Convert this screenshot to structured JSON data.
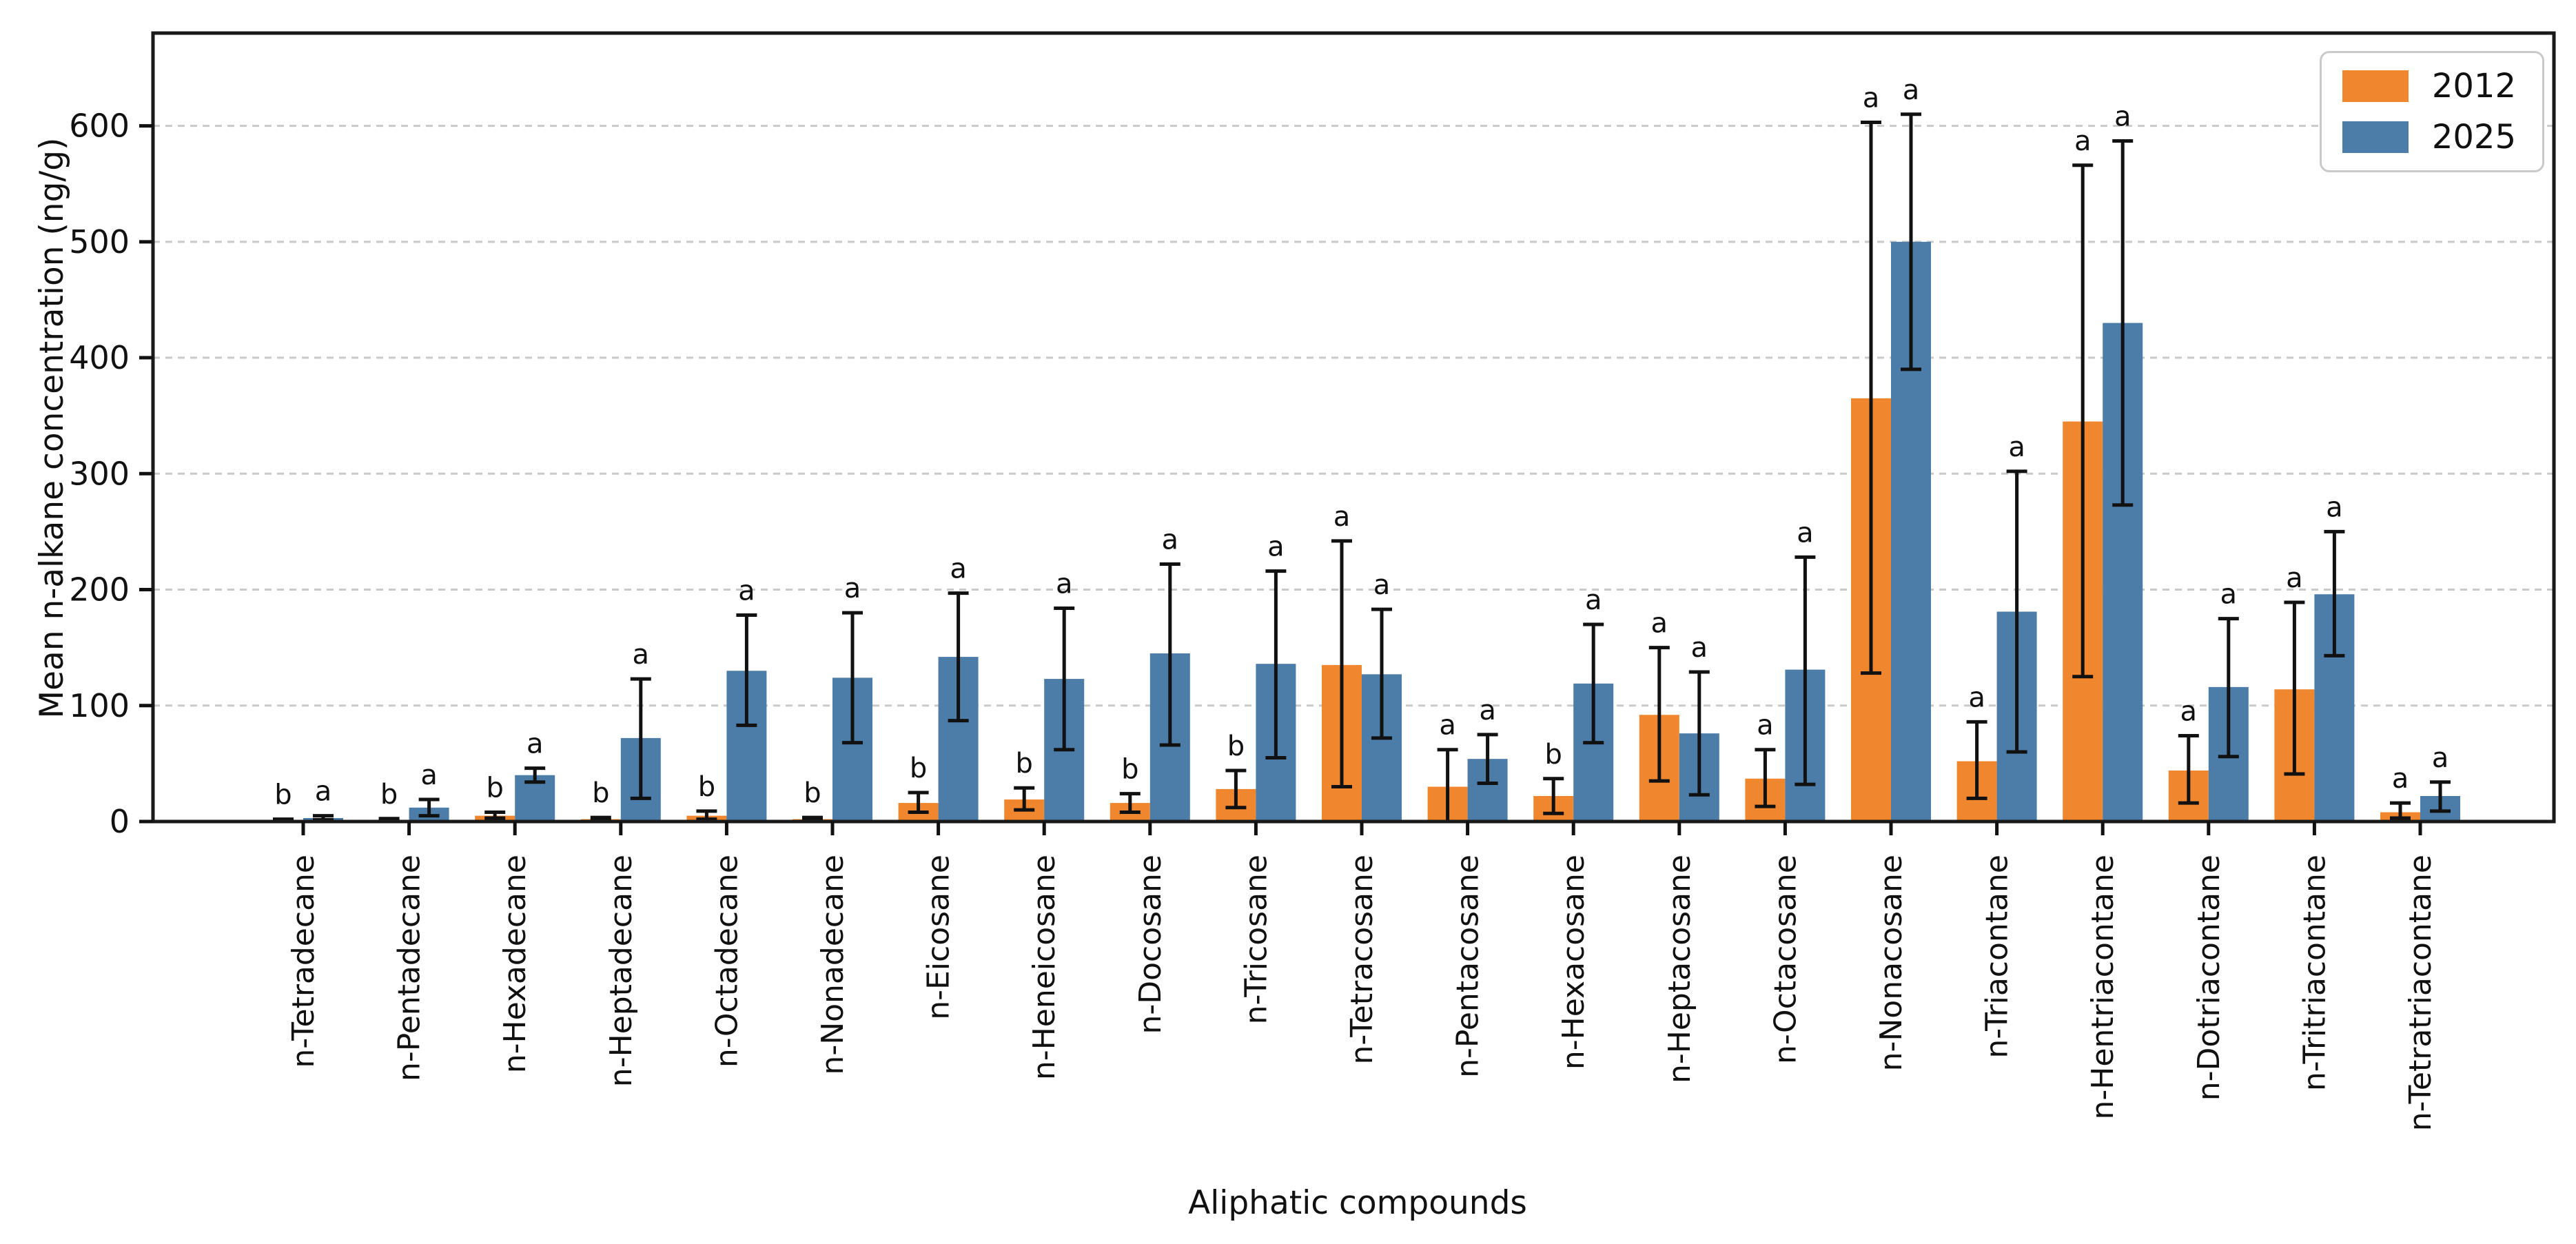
{
  "figure": {
    "background": "#ffffff",
    "plot_border_color": "#1a1a1a",
    "gridline_color": "#c9c9c9",
    "errorbar_color": "#111111"
  },
  "legend": {
    "position": "upper-right",
    "items": [
      {
        "label": "2012",
        "color": "#F0872E"
      },
      {
        "label": "2025",
        "color": "#4C7CA8"
      }
    ]
  },
  "chart_data": {
    "type": "bar",
    "title": "",
    "xlabel": "Aliphatic compounds",
    "ylabel": "Mean n-alkane concentration (ng/g)",
    "ylim": [
      0,
      680
    ],
    "yticks": [
      0,
      100,
      200,
      300,
      400,
      500,
      600
    ],
    "grid": "horizontal-dashed",
    "legend_position": "upper-right",
    "categories": [
      "n-Tetradecane",
      "n-Pentadecane",
      "n-Hexadecane",
      "n-Heptadecane",
      "n-Octadecane",
      "n-Nonadecane",
      "n-Eicosane",
      "n-Heneicosane",
      "n-Docosane",
      "n-Tricosane",
      "n-Tetracosane",
      "n-Pentacosane",
      "n-Hexacosane",
      "n-Heptacosane",
      "n-Octacosane",
      "n-Nonacosane",
      "n-Triacontane",
      "n-Hentriacontane",
      "n-Dotriacontane",
      "n-Tritriacontane",
      "n-Tetratriacontane"
    ],
    "series": [
      {
        "name": "2012",
        "color": "#F0872E",
        "values": [
          1,
          1.5,
          5,
          2,
          5,
          2,
          16,
          19,
          16,
          28,
          135,
          30,
          22,
          92,
          37,
          365,
          52,
          345,
          44,
          114,
          8
        ],
        "error_low": [
          0.5,
          0.8,
          3,
          1,
          2,
          1,
          8,
          10,
          8,
          12,
          30,
          0,
          7,
          35,
          13,
          128,
          20,
          125,
          16,
          41,
          3
        ],
        "error_high": [
          2,
          2.5,
          8,
          3.5,
          9,
          3.5,
          25,
          29,
          24,
          44,
          242,
          62,
          37,
          150,
          62,
          603,
          86,
          566,
          74,
          189,
          16
        ],
        "sig_letters": [
          "b",
          "b",
          "b",
          "b",
          "b",
          "b",
          "b",
          "b",
          "b",
          "b",
          "a",
          "a",
          "b",
          "a",
          "a",
          "a",
          "a",
          "a",
          "a",
          "a",
          "a"
        ]
      },
      {
        "name": "2025",
        "color": "#4C7CA8",
        "values": [
          3,
          12,
          40,
          72,
          130,
          124,
          142,
          123,
          145,
          136,
          127,
          54,
          119,
          76,
          131,
          500,
          181,
          430,
          116,
          196,
          22
        ],
        "error_low": [
          1.5,
          5,
          34,
          20,
          83,
          68,
          87,
          62,
          66,
          55,
          72,
          33,
          68,
          23,
          32,
          390,
          60,
          273,
          56,
          143,
          9
        ],
        "error_high": [
          5,
          19,
          46,
          123,
          178,
          180,
          197,
          184,
          222,
          216,
          183,
          75,
          170,
          129,
          228,
          610,
          302,
          587,
          175,
          250,
          34
        ],
        "sig_letters": [
          "a",
          "a",
          "a",
          "a",
          "a",
          "a",
          "a",
          "a",
          "a",
          "a",
          "a",
          "a",
          "a",
          "a",
          "a",
          "a",
          "a",
          "a",
          "a",
          "a",
          "a"
        ]
      }
    ]
  }
}
